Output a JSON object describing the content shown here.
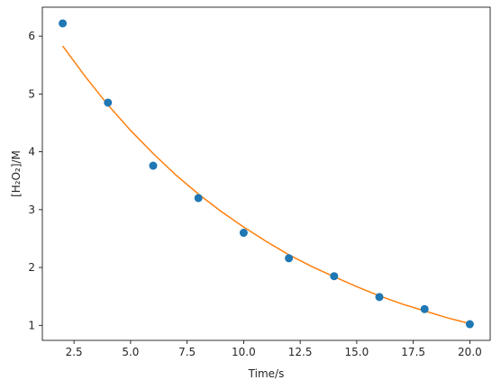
{
  "chart_data": {
    "type": "scatter",
    "xlabel": "Time/s",
    "ylabel": "[H₂O₂]/M",
    "xlim": [
      1.1,
      20.9
    ],
    "ylim": [
      0.74,
      6.5
    ],
    "x_ticks": [
      2.5,
      5.0,
      7.5,
      10.0,
      12.5,
      15.0,
      17.5,
      20.0
    ],
    "x_tick_labels": [
      "2.5",
      "5.0",
      "7.5",
      "10.0",
      "12.5",
      "15.0",
      "17.5",
      "20.0"
    ],
    "y_ticks": [
      1,
      2,
      3,
      4,
      5,
      6
    ],
    "y_tick_labels": [
      "1",
      "2",
      "3",
      "4",
      "5",
      "6"
    ],
    "grid": false,
    "series": [
      {
        "kind": "scatter",
        "color": "#1f77b4",
        "x": [
          2,
          4,
          6,
          8,
          10,
          12,
          14,
          16,
          18,
          20
        ],
        "y": [
          6.22,
          4.85,
          3.76,
          3.2,
          2.6,
          2.16,
          1.85,
          1.49,
          1.28,
          1.02
        ]
      },
      {
        "kind": "line",
        "color": "#ff7f0e",
        "x": [
          2,
          3,
          4,
          5,
          6,
          7,
          8,
          9,
          10,
          11,
          12,
          13,
          14,
          15,
          16,
          17,
          18,
          19,
          20
        ],
        "y": [
          5.83,
          5.3,
          4.81,
          4.37,
          3.97,
          3.6,
          3.27,
          2.97,
          2.7,
          2.45,
          2.22,
          2.02,
          1.84,
          1.67,
          1.51,
          1.37,
          1.25,
          1.13,
          1.03
        ]
      }
    ]
  }
}
